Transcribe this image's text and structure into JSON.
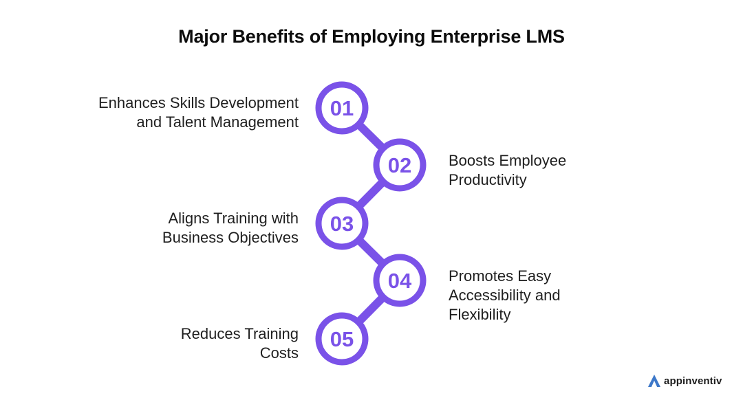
{
  "title": "Major Benefits of Employing Enterprise LMS",
  "colors": {
    "accent": "#7a52e8",
    "ring_fill": "#ffffff",
    "text": "#1f1f1f",
    "logo_blue": "#3d78c9"
  },
  "steps": [
    {
      "number": "01",
      "label": "Enhances Skills Development\nand Talent Management",
      "side": "left"
    },
    {
      "number": "02",
      "label": "Boosts Employee\nProductivity",
      "side": "right"
    },
    {
      "number": "03",
      "label": "Aligns Training with\nBusiness Objectives",
      "side": "left"
    },
    {
      "number": "04",
      "label": "Promotes Easy\nAccessibility and\nFlexibility",
      "side": "right"
    },
    {
      "number": "05",
      "label": "Reduces Training\nCosts",
      "side": "left"
    }
  ],
  "brand": {
    "name": "appinventiv",
    "icon": "appinventiv-logo-icon"
  }
}
